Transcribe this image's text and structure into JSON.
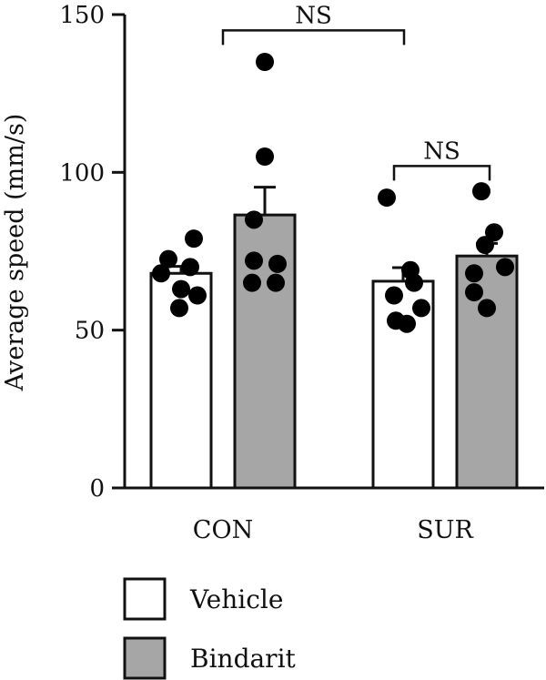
{
  "chart_data": {
    "type": "bar",
    "title": "",
    "xlabel": "",
    "ylabel": "Average speed (mm/s)",
    "ylim": [
      0,
      150
    ],
    "yticks": [
      0,
      50,
      100,
      150
    ],
    "categories": [
      "CON",
      "SUR"
    ],
    "series": [
      {
        "name": "Vehicle",
        "color": "#ffffff",
        "values": [
          68,
          65.5
        ],
        "errors": [
          2.2,
          4.3
        ],
        "points": [
          [
            72.5,
            70,
            79,
            68,
            63,
            61,
            57
          ],
          [
            92,
            69,
            65,
            61,
            57,
            53,
            52
          ]
        ]
      },
      {
        "name": "Bindarit",
        "color": "#a6a6a6",
        "values": [
          86.5,
          73.5
        ],
        "errors": [
          8.8,
          4
        ],
        "points": [
          [
            135,
            105,
            85,
            72,
            71,
            65,
            65
          ],
          [
            94,
            81,
            77,
            70,
            68,
            62,
            57
          ]
        ]
      }
    ],
    "significance": [
      {
        "label": "NS",
        "from": "CON",
        "to": "SUR",
        "level": 145
      },
      {
        "label": "NS",
        "from": "SUR-Vehicle",
        "to": "SUR-Bindarit",
        "level": 102
      }
    ],
    "grid": false,
    "legend": "bottom-left"
  }
}
